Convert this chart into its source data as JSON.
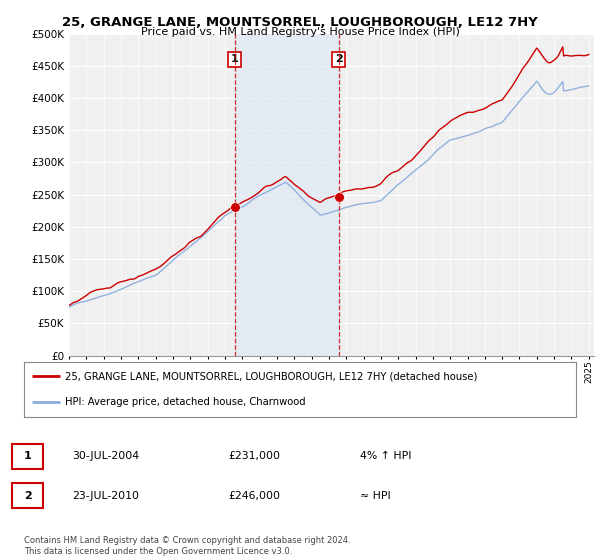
{
  "title": "25, GRANGE LANE, MOUNTSORREL, LOUGHBOROUGH, LE12 7HY",
  "subtitle": "Price paid vs. HM Land Registry's House Price Index (HPI)",
  "ytick_values": [
    0,
    50000,
    100000,
    150000,
    200000,
    250000,
    300000,
    350000,
    400000,
    450000,
    500000
  ],
  "ylim": [
    0,
    500000
  ],
  "purchase1_year": 2004.57,
  "purchase1_price": 231000,
  "purchase2_year": 2010.56,
  "purchase2_price": 246000,
  "vline_color": "#cc0000",
  "vline_shading_color": "#dce6f5",
  "legend_line1": "25, GRANGE LANE, MOUNTSORREL, LOUGHBOROUGH, LE12 7HY (detached house)",
  "legend_line2": "HPI: Average price, detached house, Charnwood",
  "table_row1_date": "30-JUL-2004",
  "table_row1_price": "£231,000",
  "table_row1_hpi": "4% ↑ HPI",
  "table_row2_date": "23-JUL-2010",
  "table_row2_price": "£246,000",
  "table_row2_hpi": "≈ HPI",
  "footer": "Contains HM Land Registry data © Crown copyright and database right 2024.\nThis data is licensed under the Open Government Licence v3.0.",
  "hpi_line_color": "#88aadd",
  "price_line_color": "#cc0000",
  "plot_bg_color": "#f0f0f0",
  "grid_color": "#ffffff",
  "marker_color": "#cc0000"
}
